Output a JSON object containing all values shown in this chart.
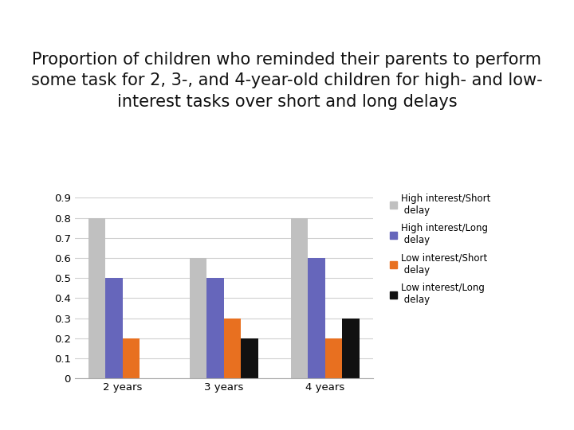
{
  "title": "Proportion of children who reminded their parents to perform\nsome task for 2, 3-, and 4-year-old children for high- and low-\ninterest tasks over short and long delays",
  "categories": [
    "2 years",
    "3 years",
    "4 years"
  ],
  "series": {
    "High interest/Short delay": [
      0.8,
      0.6,
      0.8
    ],
    "High interest/Long delay": [
      0.5,
      0.5,
      0.6
    ],
    "Low interest/Short delay": [
      0.2,
      0.3,
      0.2
    ],
    "Low interest/Long delay": [
      0.0,
      0.2,
      0.3
    ]
  },
  "colors": {
    "High interest/Short delay": "#c0c0c0",
    "High interest/Long delay": "#6666bb",
    "Low interest/Short delay": "#e87020",
    "Low interest/Long delay": "#111111"
  },
  "ylim": [
    0,
    0.9
  ],
  "yticks": [
    0,
    0.1,
    0.2,
    0.3,
    0.4,
    0.5,
    0.6,
    0.7,
    0.8,
    0.9
  ],
  "background_color": "#ffffff",
  "title_fontsize": 15,
  "legend_fontsize": 8.5,
  "tick_fontsize": 9.5,
  "bar_width": 0.17,
  "legend_labels": [
    "High interest/Short\n delay",
    "High interest/Long\n delay",
    "Low interest/Short\n delay",
    "Low interest/Long\n delay"
  ]
}
